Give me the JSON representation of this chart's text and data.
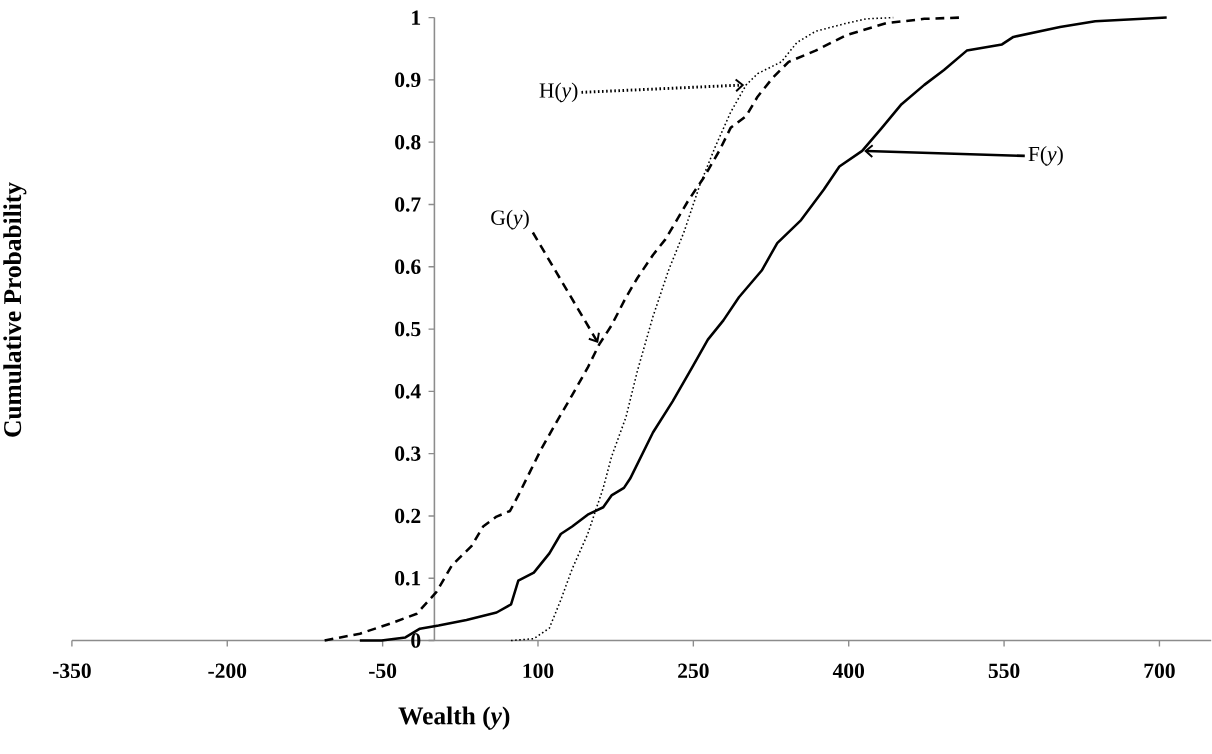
{
  "chart_data": {
    "type": "line",
    "xlabel": "**Wealth  (*y*)**",
    "ylabel": "Cumulative Probability",
    "xlim": [
      -350,
      750
    ],
    "ylim": [
      0,
      1
    ],
    "xticks": [
      -350,
      -200,
      -50,
      100,
      250,
      400,
      550,
      700
    ],
    "yticks": [
      0,
      0.1,
      0.2,
      0.3,
      0.4,
      0.5,
      0.6,
      0.7,
      0.8,
      0.9,
      1
    ],
    "grid": false,
    "marker": "none",
    "series": [
      {
        "color": "#000000",
        "line_style": "solid",
        "x": [
          -72,
          -51,
          -28,
          -14,
          4,
          31,
          60,
          74,
          81,
          96,
          111,
          122,
          133,
          148,
          163,
          171,
          183,
          189,
          211,
          230,
          249,
          264,
          279,
          294,
          316,
          331,
          354,
          376,
          391,
          413,
          432,
          451,
          473,
          492,
          514,
          548,
          559,
          604,
          638,
          707
        ],
        "values": [
          0,
          0,
          0.005,
          0.019,
          0.024,
          0.033,
          0.045,
          0.058,
          0.096,
          0.109,
          0.14,
          0.171,
          0.183,
          0.202,
          0.214,
          0.233,
          0.245,
          0.26,
          0.334,
          0.384,
          0.439,
          0.483,
          0.514,
          0.551,
          0.594,
          0.638,
          0.675,
          0.724,
          0.761,
          0.786,
          0.823,
          0.861,
          0.892,
          0.916,
          0.947,
          0.957,
          0.969,
          0.985,
          0.994,
          1
        ]
      },
      {
        "color": "#000000",
        "line_style": "dashed",
        "x": [
          -106,
          -72,
          -43,
          -17,
          2,
          17,
          36,
          47,
          60,
          73,
          81,
          92,
          103,
          118,
          133,
          148,
          159,
          171,
          185,
          196,
          211,
          223,
          234,
          245,
          260,
          275,
          286,
          301,
          312,
          327,
          342,
          368,
          398,
          436,
          473,
          507
        ],
        "values": [
          0,
          0.011,
          0.027,
          0.043,
          0.078,
          0.121,
          0.152,
          0.183,
          0.199,
          0.208,
          0.233,
          0.27,
          0.307,
          0.351,
          0.394,
          0.438,
          0.475,
          0.506,
          0.551,
          0.582,
          0.619,
          0.644,
          0.675,
          0.706,
          0.743,
          0.786,
          0.823,
          0.842,
          0.873,
          0.904,
          0.929,
          0.947,
          0.972,
          0.991,
          0.998,
          1
        ]
      },
      {
        "color": "#000000",
        "line_style": "dotted",
        "x": [
          74,
          96,
          111,
          122,
          133,
          148,
          163,
          171,
          185,
          196,
          211,
          226,
          241,
          256,
          271,
          286,
          301,
          312,
          335,
          350,
          368,
          398,
          417,
          443
        ],
        "values": [
          0,
          0.003,
          0.02,
          0.065,
          0.115,
          0.171,
          0.245,
          0.295,
          0.359,
          0.433,
          0.52,
          0.594,
          0.656,
          0.73,
          0.792,
          0.848,
          0.892,
          0.91,
          0.929,
          0.96,
          0.978,
          0.991,
          0.998,
          1
        ]
      }
    ],
    "annotations": [
      {
        "text": "F(*y*)",
        "x": 413,
        "y": 0.786
      },
      {
        "text": "G(*y*)",
        "x": 159,
        "y": 0.475
      },
      {
        "text": "H(*y*)",
        "x": 301,
        "y": 0.892
      }
    ]
  }
}
